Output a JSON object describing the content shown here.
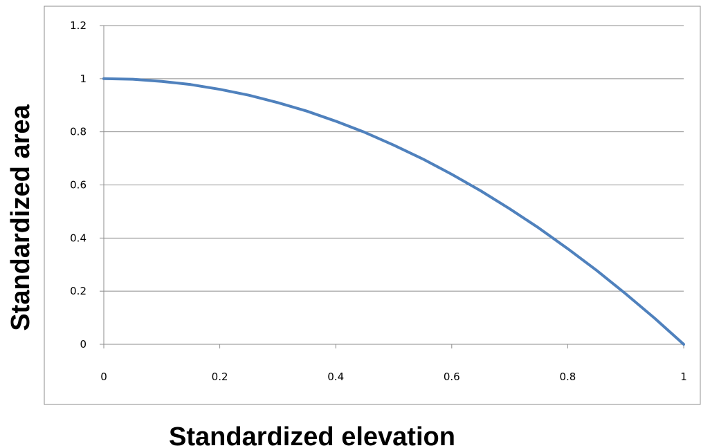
{
  "chart_data": {
    "type": "line",
    "title": "",
    "xlabel": "Standardized elevation",
    "ylabel": "Standardized area",
    "xlim": [
      0,
      1
    ],
    "ylim": [
      0,
      1.2
    ],
    "x_ticks": [
      0,
      0.2,
      0.4,
      0.6,
      0.8,
      1
    ],
    "x_tick_labels": [
      "0",
      "0.2",
      "0.4",
      "0.6",
      "0.8",
      "1"
    ],
    "y_ticks": [
      0,
      0.2,
      0.4,
      0.6,
      0.8,
      1,
      1.2
    ],
    "y_tick_labels": [
      "0",
      "0.2",
      "0.4",
      "0.6",
      "0.8",
      "1",
      "1.2"
    ],
    "grid": "horizontal",
    "legend": "none",
    "series": [
      {
        "color": "#4f81bd",
        "x": [
          0,
          0.05,
          0.1,
          0.15,
          0.2,
          0.25,
          0.3,
          0.35,
          0.4,
          0.45,
          0.5,
          0.55,
          0.6,
          0.65,
          0.7,
          0.75,
          0.8,
          0.85,
          0.9,
          0.95,
          1
        ],
        "y": [
          1,
          0.998,
          0.99,
          0.978,
          0.96,
          0.938,
          0.91,
          0.878,
          0.84,
          0.798,
          0.75,
          0.698,
          0.64,
          0.578,
          0.51,
          0.438,
          0.36,
          0.278,
          0.19,
          0.098,
          0
        ]
      }
    ]
  }
}
